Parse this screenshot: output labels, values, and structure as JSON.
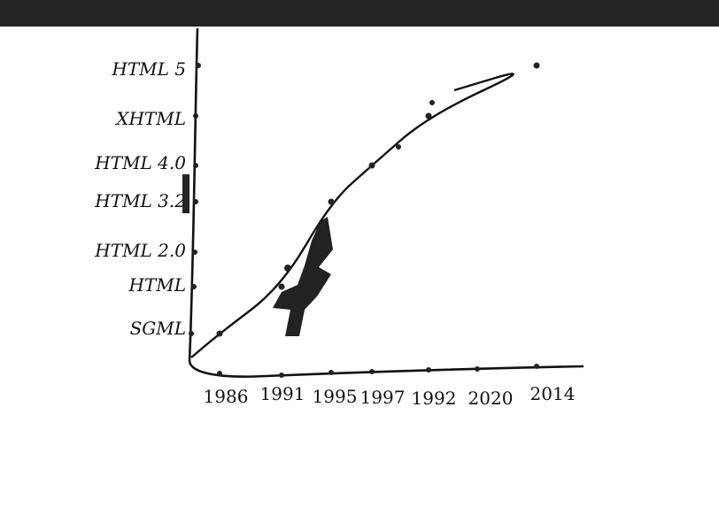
{
  "window": {
    "bar_color": "#232323"
  },
  "chart_data": {
    "type": "line",
    "title": "",
    "xlabel": "",
    "ylabel": "",
    "x_ticks": [
      "1986",
      "1991",
      "1995",
      "1997",
      "1992",
      "2020",
      "2014"
    ],
    "y_ticks": [
      "SGML",
      "HTML",
      "HTML 2.0",
      "HTML 3.2",
      "HTML 4.0",
      "XHTML",
      "HTML 5"
    ],
    "grid": false,
    "series": [
      {
        "points": [
          {
            "x": "1986",
            "y": "SGML"
          },
          {
            "x": "1991",
            "y": "HTML"
          },
          {
            "x": "1995",
            "y": "HTML 3.2"
          },
          {
            "x": "1997",
            "y": "HTML 4.0"
          },
          {
            "x": "1992",
            "y": "XHTML"
          },
          {
            "x": "2014",
            "y": "HTML 5"
          }
        ]
      }
    ],
    "colors": {
      "ink": "#111111",
      "marker": "#222222"
    }
  }
}
